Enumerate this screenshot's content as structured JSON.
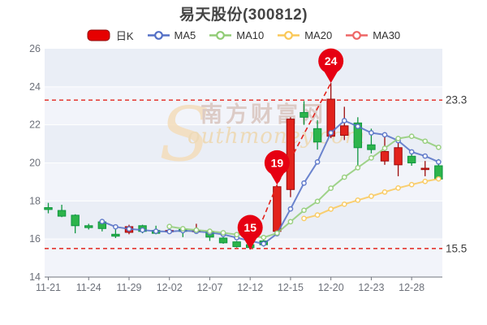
{
  "title": "易天股份(300812)",
  "legend": {
    "items": [
      {
        "name": "daily-k",
        "label": "日K",
        "type": "candle",
        "color": "#e60000",
        "border": "#8f0b0b"
      },
      {
        "name": "ma5",
        "label": "MA5",
        "type": "line",
        "color": "#5470c6"
      },
      {
        "name": "ma10",
        "label": "MA10",
        "type": "line",
        "color": "#91cc75"
      },
      {
        "name": "ma20",
        "label": "MA20",
        "type": "line",
        "color": "#fac858"
      },
      {
        "name": "ma30",
        "label": "MA30",
        "type": "line",
        "color": "#ee6666"
      }
    ]
  },
  "watermark": {
    "site_cn": "南方财富网",
    "site_en": "Southmoney.com"
  },
  "chart_data": {
    "type": "candlestick",
    "title": "易天股份(300812)",
    "stock_code": "300812",
    "ylim": [
      14,
      26
    ],
    "yticks": [
      14,
      16,
      18,
      20,
      22,
      24,
      26
    ],
    "xtick_labels": [
      "11-21",
      "11-24",
      "11-29",
      "12-02",
      "12-07",
      "12-12",
      "12-15",
      "12-20",
      "12-23",
      "12-28"
    ],
    "xtick_every": 3,
    "dates": [
      "11-21",
      "11-22",
      "11-23",
      "11-24",
      "11-25",
      "11-28",
      "11-29",
      "11-30",
      "12-01",
      "12-02",
      "12-05",
      "12-06",
      "12-07",
      "12-08",
      "12-09",
      "12-12",
      "12-13",
      "12-14",
      "12-15",
      "12-16",
      "12-19",
      "12-20",
      "12-21",
      "12-22",
      "12-23",
      "12-26",
      "12-27",
      "12-28",
      "12-29",
      "12-30"
    ],
    "ohlc_order": [
      "open",
      "close",
      "low",
      "high"
    ],
    "ohlc": [
      [
        17.65,
        17.55,
        17.35,
        17.9
      ],
      [
        17.5,
        17.2,
        17.15,
        17.8
      ],
      [
        17.25,
        16.7,
        16.3,
        17.3
      ],
      [
        16.7,
        16.6,
        16.5,
        16.8
      ],
      [
        16.9,
        16.55,
        16.4,
        16.95
      ],
      [
        16.25,
        16.15,
        16.05,
        16.5
      ],
      [
        16.35,
        16.65,
        16.25,
        16.75
      ],
      [
        16.7,
        16.4,
        16.3,
        16.75
      ],
      [
        16.45,
        16.3,
        16.25,
        16.7
      ],
      [
        16.4,
        16.45,
        16.3,
        16.55
      ],
      [
        16.5,
        16.4,
        16.1,
        16.55
      ],
      [
        16.45,
        16.45,
        16.3,
        16.8
      ],
      [
        16.4,
        16.1,
        15.9,
        16.45
      ],
      [
        16.05,
        15.8,
        15.75,
        16.1
      ],
      [
        15.85,
        15.6,
        15.55,
        15.9
      ],
      [
        15.7,
        15.55,
        15.45,
        15.75
      ],
      [
        15.9,
        15.7,
        15.6,
        15.95
      ],
      [
        16.4,
        18.75,
        16.3,
        18.85
      ],
      [
        18.6,
        22.3,
        18.2,
        22.4
      ],
      [
        22.65,
        22.4,
        22.0,
        23.25
      ],
      [
        21.8,
        21.1,
        20.7,
        22.25
      ],
      [
        21.4,
        23.35,
        21.3,
        24.2
      ],
      [
        21.45,
        21.95,
        21.2,
        22.95
      ],
      [
        22.1,
        20.8,
        19.8,
        22.4
      ],
      [
        20.95,
        20.7,
        20.5,
        21.8
      ],
      [
        20.1,
        20.6,
        19.9,
        21.5
      ],
      [
        19.9,
        20.8,
        19.3,
        21.3
      ],
      [
        20.35,
        20.0,
        19.85,
        20.55
      ],
      [
        19.65,
        19.72,
        19.3,
        20.1
      ],
      [
        19.85,
        19.15,
        19.05,
        20.2
      ]
    ],
    "up_color": "#e2231c",
    "up_border": "#9d0a0a",
    "down_color": "#2db44b",
    "down_border": "#0f9640",
    "series": [
      {
        "name": "MA5",
        "color": "#5470c6",
        "start_index": 4,
        "values": [
          16.92,
          16.64,
          16.53,
          16.47,
          16.41,
          16.39,
          16.44,
          16.4,
          16.34,
          16.24,
          16.07,
          15.9,
          15.75,
          16.28,
          17.58,
          18.94,
          20.05,
          21.58,
          22.22,
          21.92,
          21.58,
          21.48,
          21.17,
          20.58,
          20.36,
          20.05
        ]
      },
      {
        "name": "MA10",
        "color": "#91cc75",
        "start_index": 9,
        "values": [
          16.66,
          16.54,
          16.47,
          16.41,
          16.33,
          16.23,
          16.17,
          16.08,
          16.31,
          16.91,
          17.51,
          17.98,
          18.67,
          19.25,
          19.75,
          20.26,
          20.77,
          21.28,
          21.4,
          21.14,
          20.82
        ]
      },
      {
        "name": "MA20",
        "color": "#fac858",
        "start_index": 19,
        "values": [
          17.08,
          17.26,
          17.57,
          17.83,
          18.04,
          18.25,
          18.47,
          18.68,
          18.86,
          19.03,
          19.16
        ]
      },
      {
        "name": "MA30",
        "color": "#ee6666",
        "start_index": 29,
        "values": []
      }
    ],
    "annotations": [
      {
        "label": "15",
        "index": 15,
        "value": 15.45,
        "anchor": "low"
      },
      {
        "label": "19",
        "index": 17,
        "value": 18.85,
        "anchor": "high"
      },
      {
        "label": "24",
        "index": 21,
        "value": 24.2,
        "anchor": "high"
      }
    ],
    "annotation_color": "#e60012",
    "reference_lines": [
      {
        "value": 23.3,
        "label": "23.3"
      },
      {
        "value": 15.5,
        "label": "15.5"
      }
    ],
    "reference_color": "#e3241d",
    "legend_position": "top",
    "grid": true
  }
}
